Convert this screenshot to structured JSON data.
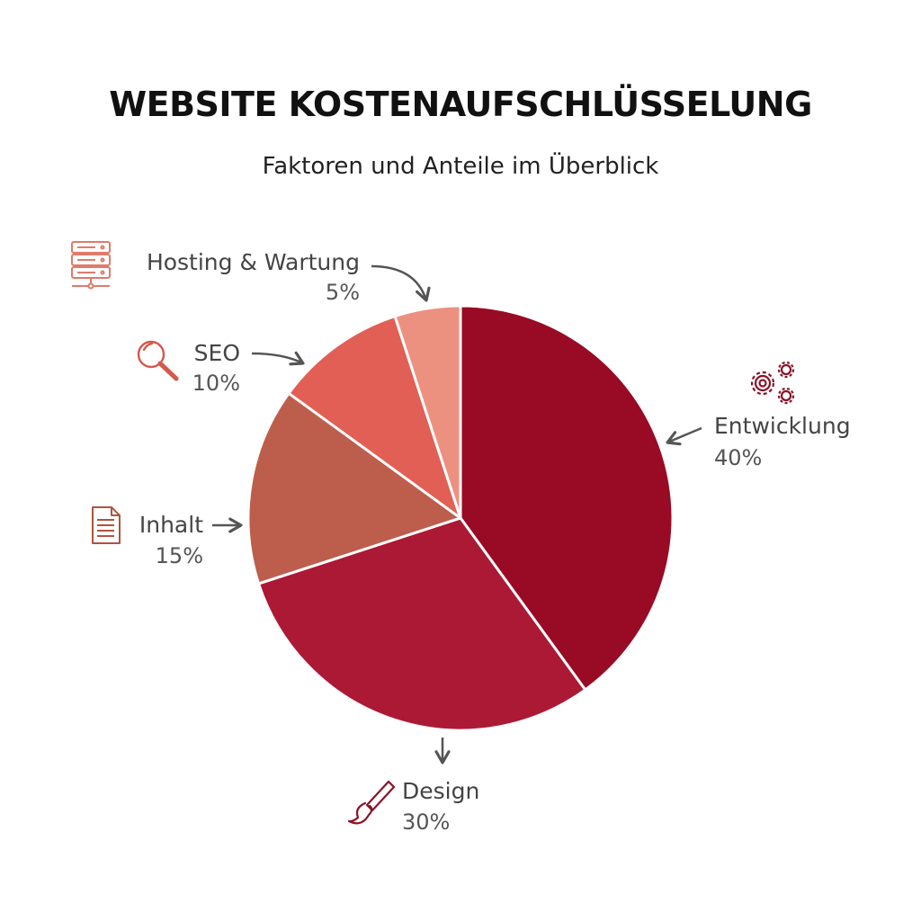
{
  "chart_data": {
    "type": "pie",
    "title": "WEBSITE KOSTENAUFSCHLÜSSELUNG",
    "subtitle": "Faktoren und Anteile im Überblick",
    "slices": [
      {
        "label": "Entwicklung",
        "value": 40,
        "value_label": "40%",
        "color": "#990a24",
        "icon": "gears-icon"
      },
      {
        "label": "Design",
        "value": 30,
        "value_label": "30%",
        "color": "#ac1934",
        "icon": "paintbrush-icon"
      },
      {
        "label": "Inhalt",
        "value": 15,
        "value_label": "15%",
        "color": "#bd5e4d",
        "icon": "document-icon"
      },
      {
        "label": "SEO",
        "value": 10,
        "value_label": "10%",
        "color": "#e15f54",
        "icon": "magnifier-icon"
      },
      {
        "label": "Hosting & Wartung",
        "value": 5,
        "value_label": "5%",
        "color": "#ec9180",
        "icon": "server-icon"
      }
    ]
  }
}
